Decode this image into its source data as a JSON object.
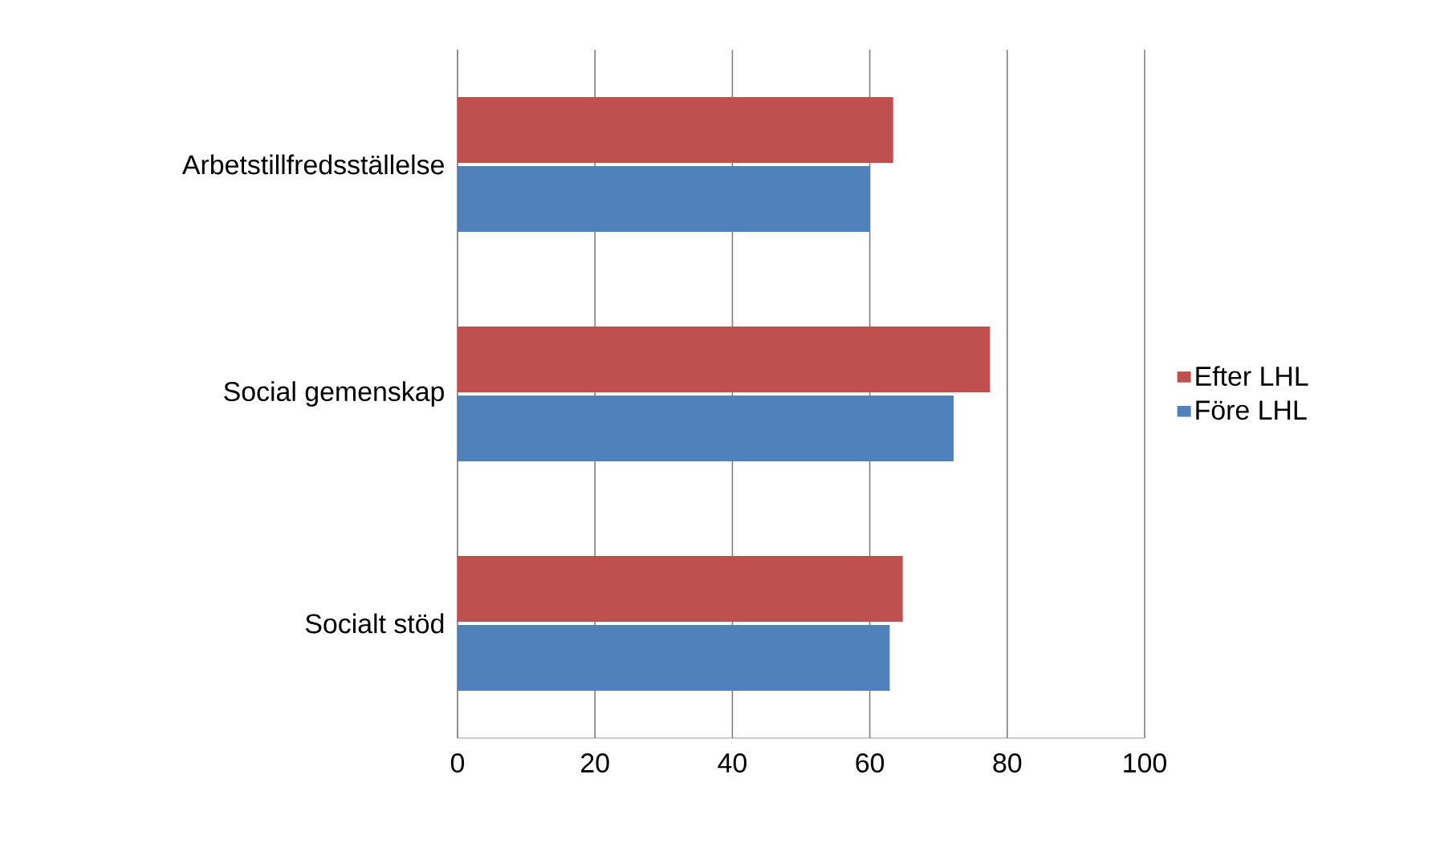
{
  "chart_data": {
    "type": "bar",
    "orientation": "horizontal",
    "categories": [
      "Arbetstillfredsställelse",
      "Social gemenskap",
      "Socialt stöd"
    ],
    "series": [
      {
        "name": "Före LHL",
        "color": "#4f81bd",
        "values": [
          60.0,
          72.2,
          62.9
        ]
      },
      {
        "name": "Efter LHL",
        "color": "#c0504d",
        "values": [
          63.4,
          77.5,
          64.8
        ]
      }
    ],
    "xlim": [
      0,
      100
    ],
    "xticks": [
      0,
      20,
      40,
      60,
      80,
      100
    ],
    "grid": "x",
    "legend": "right"
  }
}
